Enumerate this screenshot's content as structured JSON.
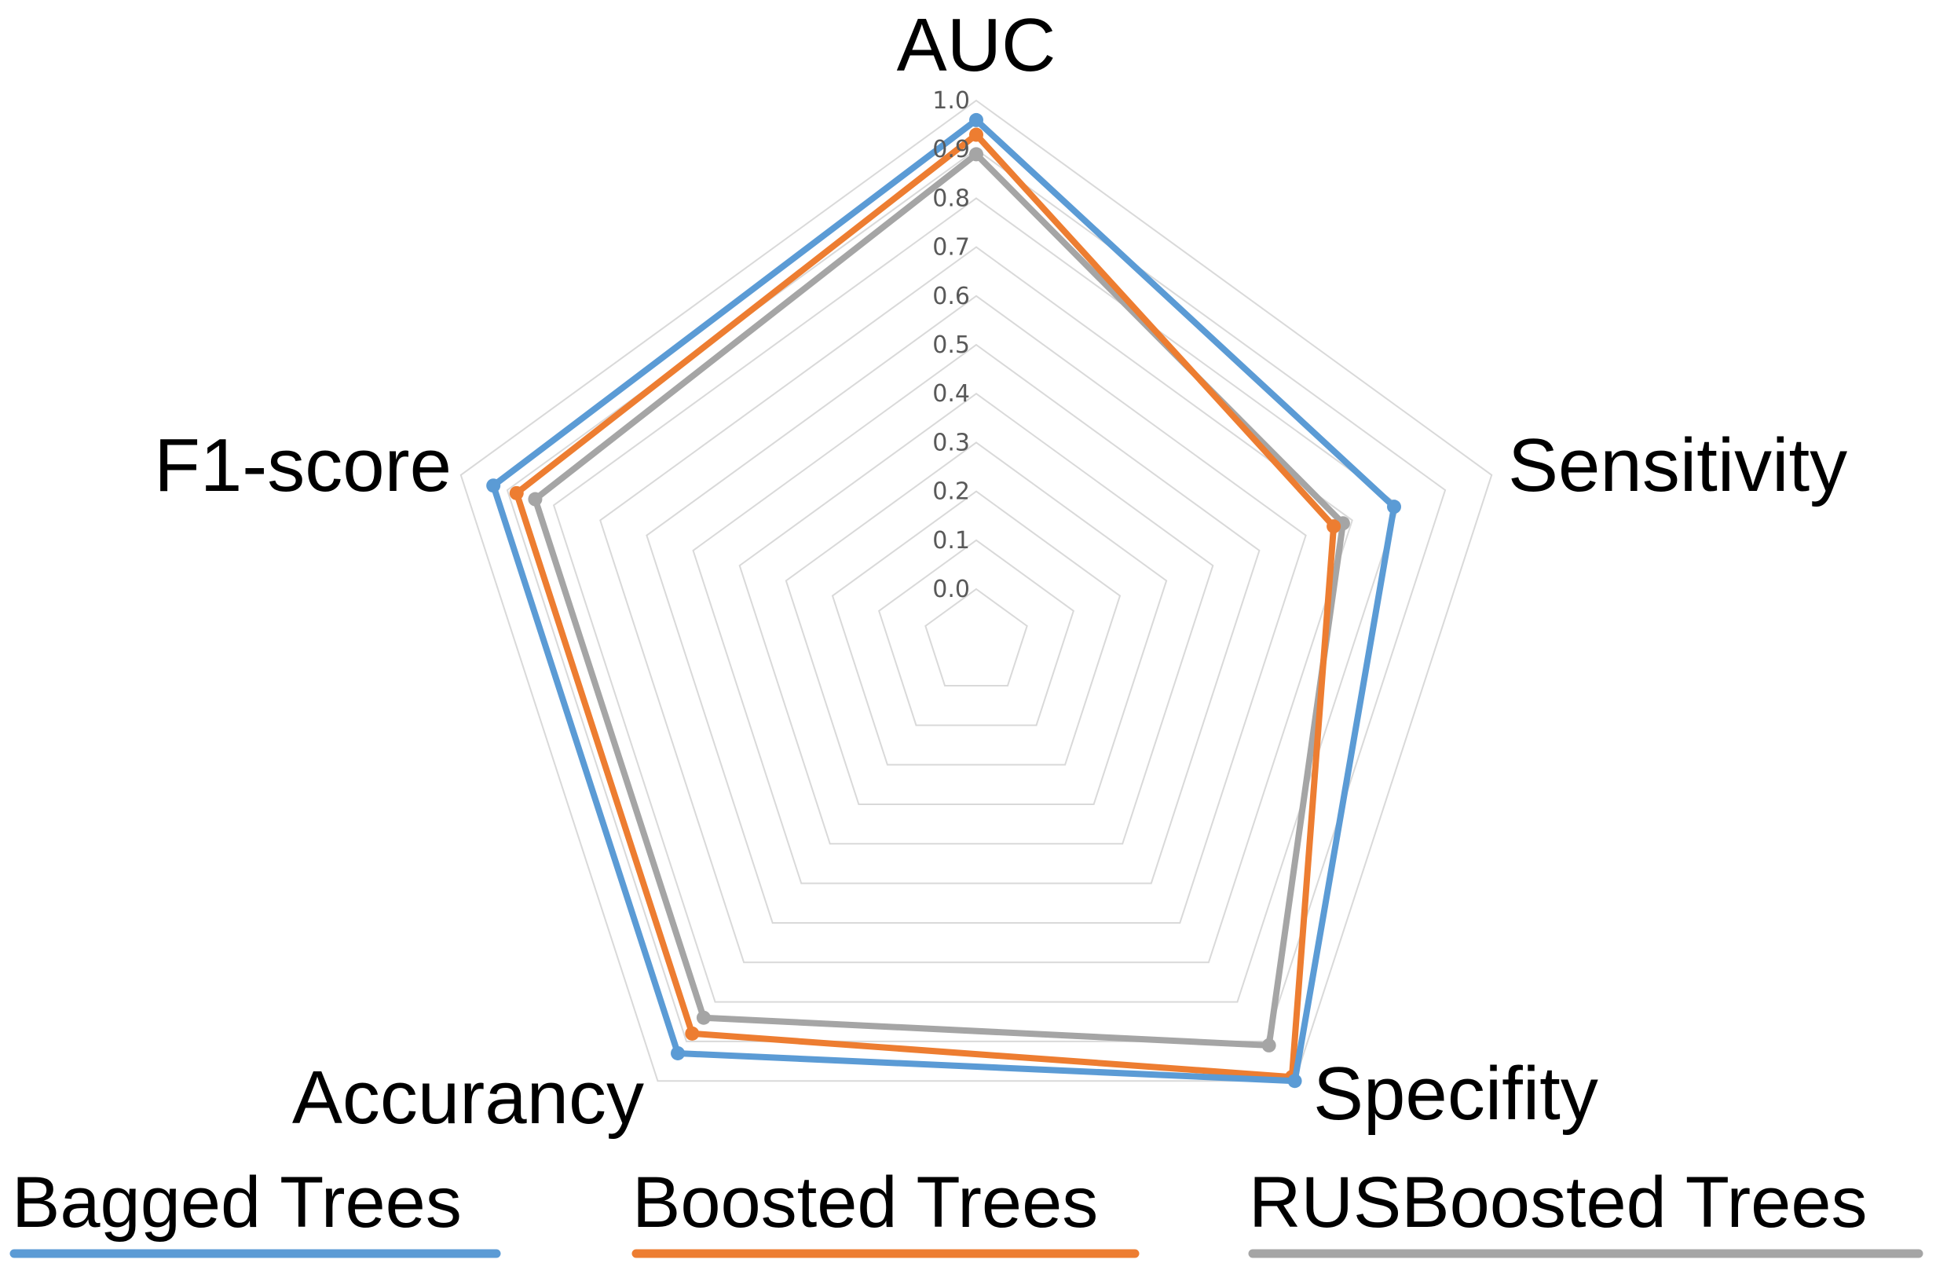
{
  "chart_data": {
    "type": "radar",
    "title": "",
    "axes": [
      "AUC",
      "Sensitivity",
      "Specifity",
      "Accurancy",
      "F1-score"
    ],
    "r_ticks": [
      "0.0",
      "0.1",
      "0.2",
      "0.3",
      "0.4",
      "0.5",
      "0.6",
      "0.7",
      "0.8",
      "0.9",
      "1.0"
    ],
    "rlim": [
      0,
      1
    ],
    "grid": true,
    "legend_position": "bottom",
    "series": [
      {
        "name": "Bagged Trees",
        "color": "#5B9BD5",
        "values": [
          0.96,
          0.79,
          1.0,
          0.93,
          0.93
        ]
      },
      {
        "name": "Boosted Trees",
        "color": "#ED7D31",
        "values": [
          0.93,
          0.66,
          0.99,
          0.88,
          0.88
        ]
      },
      {
        "name": "RUSBoosted Trees",
        "color": "#A5A5A5",
        "values": [
          0.89,
          0.68,
          0.91,
          0.84,
          0.84
        ]
      }
    ]
  }
}
